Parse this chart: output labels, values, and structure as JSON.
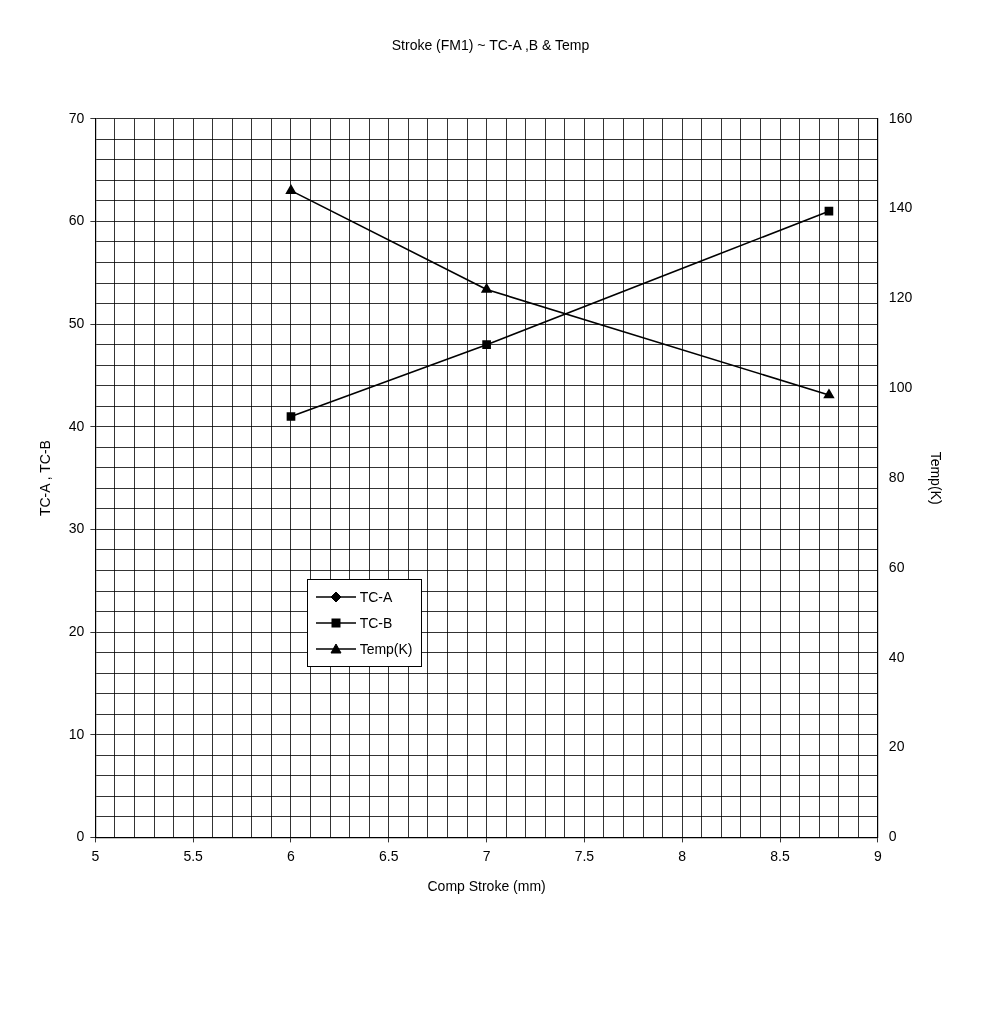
{
  "chart_data": {
    "type": "line",
    "title": "Stroke (FM1) ~ TC-A ,B & Temp",
    "xlabel": "Comp Stroke (mm)",
    "ylabel": "TC-A , TC-B",
    "y2label": "Temp(K)",
    "x": [
      6.0,
      7.0,
      8.75
    ],
    "series": [
      {
        "name": "TC-A",
        "color": "#000000",
        "marker": "diamond",
        "values": [
          null,
          null,
          null
        ]
      },
      {
        "name": "TC-B",
        "color": "#000000",
        "marker": "square",
        "values": [
          41,
          48,
          61
        ]
      },
      {
        "name": "Temp(K)",
        "color": "#000000",
        "marker": "triangle",
        "axis": "y2",
        "values": [
          144,
          122,
          98.5
        ]
      }
    ],
    "xlim": [
      5,
      9
    ],
    "xticks": [
      5,
      {
        "value": 5.1,
        "label": null
      },
      {
        "value": 5.2,
        "label": null
      },
      {
        "value": 5.3,
        "label": null
      },
      {
        "value": 5.4,
        "label": null
      },
      5.5,
      {
        "value": 5.6,
        "label": null
      },
      {
        "value": 5.7,
        "label": null
      },
      {
        "value": 5.8,
        "label": null
      },
      {
        "value": 5.9,
        "label": null
      },
      6,
      {
        "value": 6.1,
        "label": null
      },
      {
        "value": 6.2,
        "label": null
      },
      {
        "value": 6.3,
        "label": null
      },
      {
        "value": 6.4,
        "label": null
      },
      6.5,
      {
        "value": 6.6,
        "label": null
      },
      {
        "value": 6.7,
        "label": null
      },
      {
        "value": 6.8,
        "label": null
      },
      {
        "value": 6.9,
        "label": null
      },
      7,
      {
        "value": 7.1,
        "label": null
      },
      {
        "value": 7.2,
        "label": null
      },
      {
        "value": 7.3,
        "label": null
      },
      {
        "value": 7.4,
        "label": null
      },
      7.5,
      {
        "value": 7.6,
        "label": null
      },
      {
        "value": 7.7,
        "label": null
      },
      {
        "value": 7.8,
        "label": null
      },
      {
        "value": 7.9,
        "label": null
      },
      8,
      {
        "value": 8.1,
        "label": null
      },
      {
        "value": 8.2,
        "label": null
      },
      {
        "value": 8.3,
        "label": null
      },
      {
        "value": 8.4,
        "label": null
      },
      8.5,
      {
        "value": 8.6,
        "label": null
      },
      {
        "value": 8.7,
        "label": null
      },
      {
        "value": 8.8,
        "label": null
      },
      {
        "value": 8.9,
        "label": null
      },
      9
    ],
    "ylim": [
      0,
      70
    ],
    "yticks": [
      0,
      {
        "value": 2,
        "label": null
      },
      {
        "value": 4,
        "label": null
      },
      {
        "value": 6,
        "label": null
      },
      {
        "value": 8,
        "label": null
      },
      10,
      {
        "value": 12,
        "label": null
      },
      {
        "value": 14,
        "label": null
      },
      {
        "value": 16,
        "label": null
      },
      {
        "value": 18,
        "label": null
      },
      20,
      {
        "value": 22,
        "label": null
      },
      {
        "value": 24,
        "label": null
      },
      {
        "value": 26,
        "label": null
      },
      {
        "value": 28,
        "label": null
      },
      30,
      {
        "value": 32,
        "label": null
      },
      {
        "value": 34,
        "label": null
      },
      {
        "value": 36,
        "label": null
      },
      {
        "value": 38,
        "label": null
      },
      40,
      {
        "value": 42,
        "label": null
      },
      {
        "value": 44,
        "label": null
      },
      {
        "value": 46,
        "label": null
      },
      {
        "value": 48,
        "label": null
      },
      50,
      {
        "value": 52,
        "label": null
      },
      {
        "value": 54,
        "label": null
      },
      {
        "value": 56,
        "label": null
      },
      {
        "value": 58,
        "label": null
      },
      60,
      {
        "value": 62,
        "label": null
      },
      {
        "value": 64,
        "label": null
      },
      {
        "value": 66,
        "label": null
      },
      {
        "value": 68,
        "label": null
      },
      70
    ],
    "y2lim": [
      0,
      160
    ],
    "y2ticks": [
      0,
      20,
      40,
      60,
      80,
      100,
      120,
      140,
      160
    ],
    "grid": true,
    "legend": "left",
    "line_style": "solid"
  }
}
